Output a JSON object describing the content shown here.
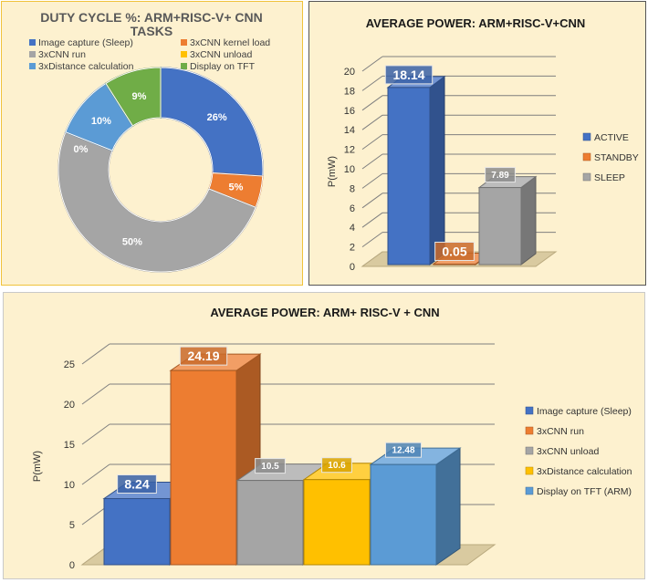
{
  "chart_data": [
    {
      "type": "pie",
      "variant": "donut",
      "title": "DUTY CYCLE %: ARM+RISC-V+ CNN TASKS",
      "title_line1": "DUTY CYCLE %: ARM+RISC-V+ CNN",
      "title_line2": "TASKS",
      "categories": [
        "Image capture (Sleep)",
        "3xCNN kernel load",
        "3xCNN run",
        "3xCNN unload",
        "3xDistance calculation",
        "Display on TFT"
      ],
      "values": [
        26,
        5,
        50,
        0,
        10,
        9
      ],
      "labels": [
        "26%",
        "5%",
        "50%",
        "0%",
        "10%",
        "9%"
      ],
      "colors": [
        "#4472c4",
        "#ed7d31",
        "#a5a5a5",
        "#ffc000",
        "#5b9bd5",
        "#70ad47"
      ],
      "legend_position": "top"
    },
    {
      "type": "bar",
      "variant": "3d",
      "title": "AVERAGE POWER: ARM+RISC-V+CNN",
      "categories": [
        "ACTIVE",
        "STANDBY",
        "SLEEP"
      ],
      "values": [
        18.14,
        0.05,
        7.89
      ],
      "labels": [
        "18.14",
        "0.05",
        "7.89"
      ],
      "colors": [
        "#4472c4",
        "#ed7d31",
        "#a5a5a5"
      ],
      "ylabel": "P(mW)",
      "ylim": [
        0,
        20
      ],
      "yticks": [
        "0",
        "2",
        "4",
        "6",
        "8",
        "10",
        "12",
        "14",
        "16",
        "18",
        "20"
      ],
      "grid": true,
      "legend_position": "right"
    },
    {
      "type": "bar",
      "variant": "3d",
      "title": "AVERAGE POWER: ARM+ RISC-V + CNN",
      "categories": [
        "Image capture (Sleep)",
        "3xCNN run",
        "3xCNN unload",
        "3xDistance calculation",
        "Display on TFT (ARM)"
      ],
      "values": [
        8.24,
        24.19,
        10.5,
        10.6,
        12.48
      ],
      "labels": [
        "8.24",
        "24.19",
        "10.5",
        "10.6",
        "12.48"
      ],
      "colors": [
        "#4472c4",
        "#ed7d31",
        "#a5a5a5",
        "#ffc000",
        "#5b9bd5"
      ],
      "ylabel": "P(mW)",
      "ylim": [
        0,
        25
      ],
      "yticks": [
        "0",
        "5",
        "10",
        "15",
        "20",
        "25"
      ],
      "grid": true,
      "legend_position": "right"
    }
  ]
}
